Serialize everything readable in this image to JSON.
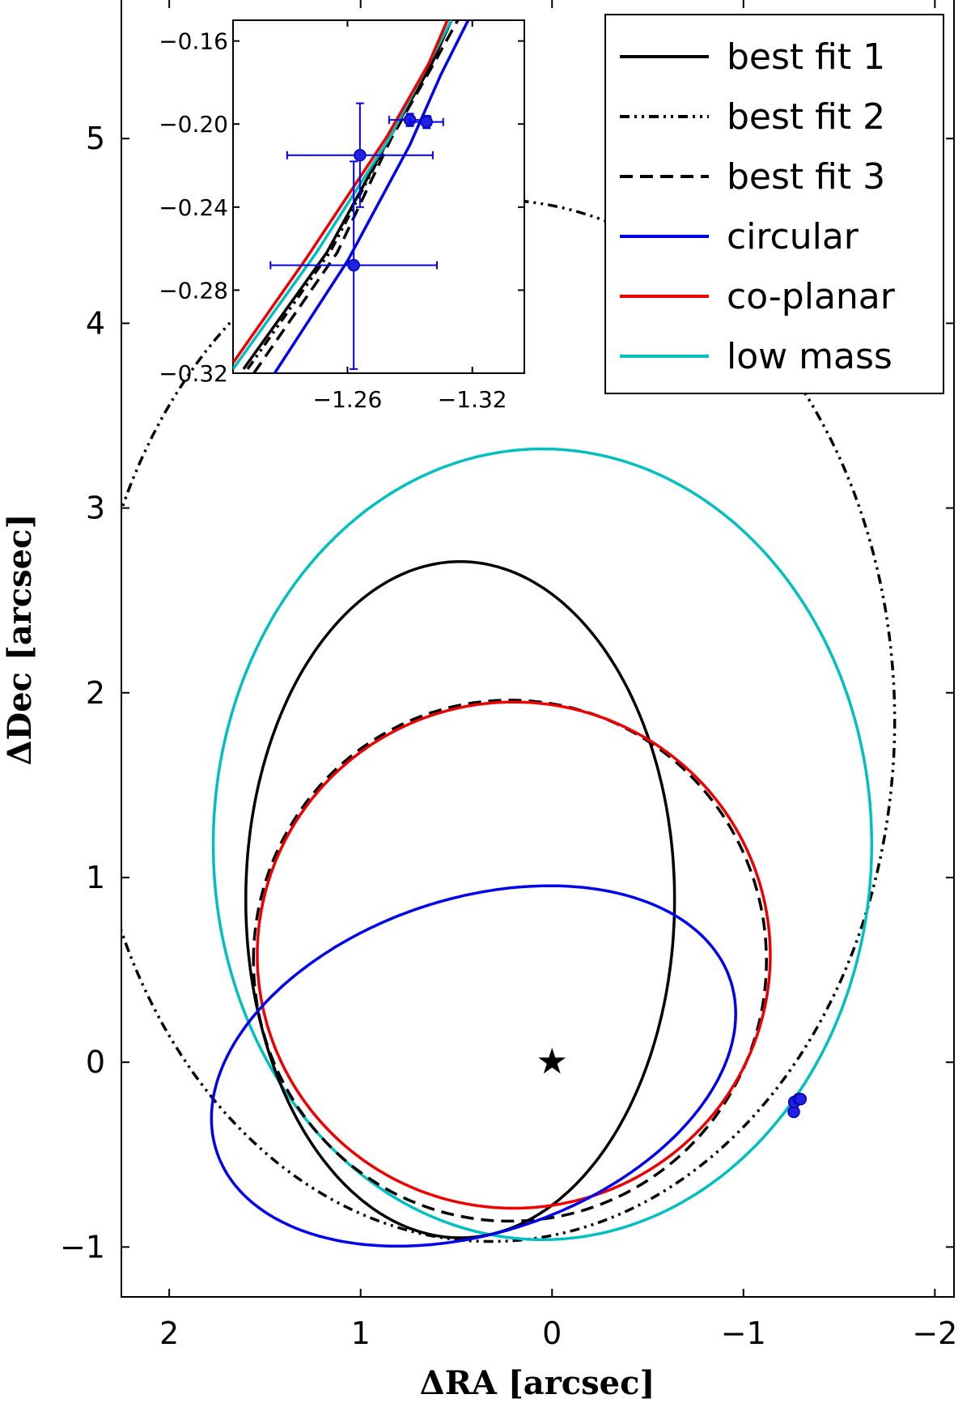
{
  "chart_data": {
    "type": "line",
    "title": "",
    "xlabel": "ΔRA [arcsec]",
    "ylabel": "ΔDec [arcsec]",
    "xlim": [
      2.25,
      -2.1
    ],
    "ylim": [
      -1.27,
      5.75
    ],
    "xticks": [
      2,
      1,
      0,
      -1,
      -2
    ],
    "xtick_labels": [
      "2",
      "1",
      "0",
      "−1",
      "−2"
    ],
    "yticks": [
      -1,
      0,
      1,
      2,
      3,
      4,
      5
    ],
    "ytick_labels": [
      "−1",
      "0",
      "1",
      "2",
      "3",
      "4",
      "5"
    ],
    "legend_position": "top-right",
    "series": [
      {
        "name": "best fit 1",
        "color": "#000000",
        "style": "solid",
        "ellipse": {
          "cx": 0.48,
          "cy": 0.88,
          "a": 1.12,
          "b": 1.83,
          "rot": 0
        }
      },
      {
        "name": "best fit 2",
        "color": "#000000",
        "style": "dashdotdot",
        "ellipse": {
          "cx": 0.32,
          "cy": 1.85,
          "a": 2.11,
          "b": 2.82,
          "rot": 0
        }
      },
      {
        "name": "best fit 3",
        "color": "#000000",
        "style": "dashed",
        "ellipse": {
          "cx": 0.22,
          "cy": 0.55,
          "a": 1.34,
          "b": 1.41,
          "rot": 0
        }
      },
      {
        "name": "circular",
        "color": "#0000ee",
        "style": "solid",
        "ellipse": {
          "cx": 0.41,
          "cy": -0.02,
          "a": 1.42,
          "b": 0.9,
          "rot": -20
        }
      },
      {
        "name": "co-planar",
        "color": "#ee0000",
        "style": "solid",
        "ellipse": {
          "cx": 0.2,
          "cy": 0.58,
          "a": 1.34,
          "b": 1.37,
          "rot": 0
        }
      },
      {
        "name": "low mass",
        "color": "#00bfbf",
        "style": "solid",
        "ellipse": {
          "cx": 0.05,
          "cy": 1.18,
          "a": 1.72,
          "b": 2.14,
          "rot": 0
        }
      }
    ],
    "star": {
      "x": 0.0,
      "y": 0.0,
      "symbol": "★"
    },
    "observations": [
      {
        "x": -1.263,
        "y": -0.268,
        "xerr": 0.04,
        "yerr": 0.05
      },
      {
        "x": -1.266,
        "y": -0.215,
        "xerr": 0.035,
        "yerr": 0.025
      },
      {
        "x": -1.29,
        "y": -0.198,
        "xerr": 0.01,
        "yerr": 0.003
      },
      {
        "x": -1.298,
        "y": -0.199,
        "xerr": 0.008,
        "yerr": 0.003
      }
    ],
    "inset": {
      "xlim": [
        -1.205,
        -1.345
      ],
      "ylim": [
        -0.32,
        -0.15
      ],
      "xticks": [
        -1.26,
        -1.32
      ],
      "xtick_labels": [
        "−1.26",
        "−1.32"
      ],
      "yticks": [
        -0.16,
        -0.2,
        -0.24,
        -0.28,
        -0.32
      ],
      "ytick_labels": [
        "−0.16",
        "−0.20",
        "−0.24",
        "−0.28",
        "−0.32"
      ],
      "lines": [
        {
          "name": "best fit 1",
          "color": "#000000",
          "style": "solid",
          "points": [
            [
              -1.21,
              -0.318
            ],
            [
              -1.25,
              -0.262
            ],
            [
              -1.28,
              -0.207
            ],
            [
              -1.3,
              -0.172
            ],
            [
              -1.31,
              -0.15
            ]
          ]
        },
        {
          "name": "best fit 2",
          "color": "#000000",
          "style": "dashdotdot",
          "points": [
            [
              -1.212,
              -0.318
            ],
            [
              -1.252,
              -0.261
            ],
            [
              -1.28,
              -0.207
            ],
            [
              -1.3,
              -0.171
            ],
            [
              -1.31,
              -0.15
            ]
          ]
        },
        {
          "name": "best fit 3",
          "color": "#000000",
          "style": "dashed",
          "points": [
            [
              -1.215,
              -0.32
            ],
            [
              -1.255,
              -0.262
            ],
            [
              -1.281,
              -0.207
            ],
            [
              -1.302,
              -0.17
            ],
            [
              -1.313,
              -0.15
            ]
          ]
        },
        {
          "name": "low mass",
          "color": "#00bfbf",
          "style": "solid",
          "points": [
            [
              -1.205,
              -0.318
            ],
            [
              -1.245,
              -0.262
            ],
            [
              -1.28,
              -0.207
            ],
            [
              -1.3,
              -0.169
            ],
            [
              -1.31,
              -0.15
            ]
          ]
        },
        {
          "name": "co-planar",
          "color": "#ee0000",
          "style": "solid",
          "points": [
            [
              -1.205,
              -0.315
            ],
            [
              -1.24,
              -0.265
            ],
            [
              -1.279,
              -0.206
            ],
            [
              -1.299,
              -0.171
            ],
            [
              -1.308,
              -0.15
            ]
          ]
        },
        {
          "name": "circular",
          "color": "#0000ee",
          "style": "solid",
          "points": [
            [
              -1.225,
              -0.32
            ],
            [
              -1.26,
              -0.266
            ],
            [
              -1.29,
              -0.21
            ],
            [
              -1.305,
              -0.176
            ],
            [
              -1.318,
              -0.15
            ]
          ]
        }
      ]
    }
  }
}
